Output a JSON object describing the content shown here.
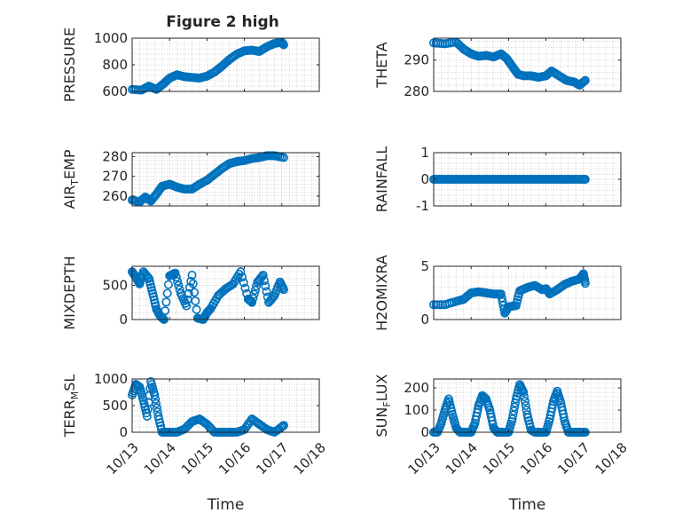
{
  "figure": {
    "title": "Figure 2 high",
    "marker_color": "#0072bd"
  },
  "chart_data": [
    {
      "type": "scatter",
      "ylabel": "PRESSURE",
      "ylim": [
        600,
        1000
      ],
      "yticks": [
        "600",
        "800",
        "1000"
      ],
      "xlim": [
        0,
        5
      ],
      "xticks": [
        "10/13",
        "10/14",
        "10/15",
        "10/16",
        "10/17",
        "10/18"
      ],
      "show_xticklabels": false,
      "grid": "dotted",
      "x": [
        0,
        0.25,
        0.45,
        0.65,
        0.85,
        1.0,
        1.2,
        1.4,
        1.6,
        1.8,
        2.0,
        2.2,
        2.4,
        2.6,
        2.8,
        3.0,
        3.2,
        3.4,
        3.6,
        3.8,
        4.0,
        4.05
      ],
      "y": [
        615,
        610,
        640,
        615,
        660,
        700,
        725,
        710,
        705,
        700,
        715,
        745,
        790,
        840,
        880,
        905,
        910,
        900,
        935,
        960,
        970,
        950
      ]
    },
    {
      "type": "scatter",
      "ylabel": "THETA",
      "ylim": [
        280,
        297
      ],
      "yticks": [
        "280",
        "290"
      ],
      "xlim": [
        0,
        5
      ],
      "xticks": [
        "10/13",
        "10/14",
        "10/15",
        "10/16",
        "10/17",
        "10/18"
      ],
      "show_xticklabels": false,
      "grid": "dotted",
      "x": [
        0,
        0.3,
        0.6,
        0.8,
        1.0,
        1.2,
        1.4,
        1.6,
        1.8,
        1.95,
        2.1,
        2.25,
        2.4,
        2.6,
        2.8,
        3.0,
        3.15,
        3.35,
        3.55,
        3.75,
        3.9,
        4.05
      ],
      "y": [
        295.5,
        295.2,
        295.8,
        293.5,
        292.0,
        291.2,
        291.5,
        291.0,
        292.0,
        290.5,
        288.0,
        285.5,
        285.0,
        285.0,
        284.5,
        285.0,
        286.5,
        285.0,
        283.5,
        283.0,
        282.0,
        283.5
      ]
    },
    {
      "type": "scatter",
      "ylabel": "AIR",
      "ylabel_sub": "T",
      "ylabel_post": "EMP",
      "ylim": [
        255,
        282
      ],
      "yticks": [
        "260",
        "270",
        "280"
      ],
      "xlim": [
        0,
        5
      ],
      "xticks": [
        "10/13",
        "10/14",
        "10/15",
        "10/16",
        "10/17",
        "10/18"
      ],
      "show_xticklabels": false,
      "grid": "dotted",
      "x": [
        0,
        0.2,
        0.35,
        0.5,
        0.65,
        0.8,
        1.0,
        1.2,
        1.4,
        1.6,
        1.8,
        2.0,
        2.2,
        2.4,
        2.6,
        2.8,
        3.0,
        3.2,
        3.4,
        3.6,
        3.8,
        4.05
      ],
      "y": [
        258,
        257,
        259.5,
        257.5,
        261,
        265,
        266,
        264.5,
        263.5,
        263.5,
        266,
        268,
        271,
        274,
        276.5,
        277.5,
        278,
        279,
        279.5,
        280.5,
        280.5,
        279.5
      ]
    },
    {
      "type": "scatter",
      "ylabel": "RAINFALL",
      "ylim": [
        -1,
        1
      ],
      "yticks": [
        "-1",
        "0",
        "1"
      ],
      "xlim": [
        0,
        5
      ],
      "xticks": [
        "10/13",
        "10/14",
        "10/15",
        "10/16",
        "10/17",
        "10/18"
      ],
      "show_xticklabels": false,
      "grid": "dotted",
      "x": [
        0,
        0.2,
        0.4,
        0.6,
        0.8,
        1.0,
        1.2,
        1.4,
        1.6,
        1.8,
        2.0,
        2.2,
        2.4,
        2.6,
        2.8,
        3.0,
        3.2,
        3.4,
        3.6,
        3.8,
        4.0,
        4.05
      ],
      "y": [
        0,
        0,
        0,
        0,
        0,
        0,
        0,
        0,
        0,
        0,
        0,
        0,
        0,
        0,
        0,
        0,
        0,
        0,
        0,
        0,
        0,
        0
      ]
    },
    {
      "type": "scatter",
      "ylabel": "MIXDEPTH",
      "ylim": [
        0,
        780
      ],
      "yticks": [
        "0",
        "500"
      ],
      "xlim": [
        0,
        5
      ],
      "xticks": [
        "10/13",
        "10/14",
        "10/15",
        "10/16",
        "10/17",
        "10/18"
      ],
      "show_xticklabels": false,
      "grid": "dotted",
      "x": [
        0,
        0.1,
        0.2,
        0.3,
        0.45,
        0.55,
        0.65,
        0.75,
        0.85,
        1.0,
        1.15,
        1.3,
        1.45,
        1.6,
        1.75,
        1.9,
        2.0,
        2.1,
        2.3,
        2.5,
        2.7,
        2.9,
        3.1,
        3.2,
        3.35,
        3.5,
        3.65,
        3.8,
        3.95,
        4.05
      ],
      "y": [
        700,
        620,
        520,
        700,
        600,
        380,
        150,
        50,
        0,
        640,
        680,
        380,
        200,
        650,
        20,
        0,
        100,
        160,
        350,
        450,
        520,
        700,
        300,
        250,
        550,
        650,
        250,
        350,
        550,
        440
      ]
    },
    {
      "type": "scatter",
      "ylabel": "H2OMIXRA",
      "ylim": [
        0,
        5
      ],
      "yticks": [
        "0",
        "5"
      ],
      "xlim": [
        0,
        5
      ],
      "xticks": [
        "10/13",
        "10/14",
        "10/15",
        "10/16",
        "10/17",
        "10/18"
      ],
      "show_xticklabels": false,
      "grid": "dotted",
      "x": [
        0,
        0.3,
        0.6,
        0.8,
        1.0,
        1.2,
        1.4,
        1.6,
        1.8,
        1.9,
        2.0,
        2.2,
        2.3,
        2.5,
        2.7,
        2.9,
        3.0,
        3.1,
        3.3,
        3.5,
        3.7,
        3.9,
        4.0,
        4.05
      ],
      "y": [
        1.4,
        1.4,
        1.7,
        1.9,
        2.5,
        2.6,
        2.5,
        2.4,
        2.4,
        0.6,
        1.2,
        1.3,
        2.7,
        3.0,
        3.2,
        2.8,
        2.9,
        2.4,
        2.8,
        3.3,
        3.6,
        3.8,
        4.3,
        3.4
      ]
    },
    {
      "type": "scatter",
      "ylabel": "TERR",
      "ylabel_sub": "M",
      "ylabel_post": "SL",
      "ylim": [
        0,
        1000
      ],
      "yticks": [
        "0",
        "500",
        "1000"
      ],
      "xlim": [
        0,
        5
      ],
      "xticks": [
        "10/13",
        "10/14",
        "10/15",
        "10/16",
        "10/17",
        "10/18"
      ],
      "show_xticklabels": true,
      "grid": "dotted",
      "xlabel": "Time",
      "x": [
        0,
        0.1,
        0.2,
        0.3,
        0.4,
        0.5,
        0.6,
        0.7,
        0.8,
        0.9,
        1.0,
        1.2,
        1.4,
        1.6,
        1.8,
        2.0,
        2.2,
        2.4,
        2.6,
        2.8,
        3.0,
        3.2,
        3.4,
        3.6,
        3.8,
        4.0,
        4.05
      ],
      "y": [
        700,
        900,
        850,
        600,
        300,
        950,
        700,
        300,
        0,
        0,
        0,
        0,
        60,
        200,
        250,
        150,
        0,
        0,
        0,
        0,
        50,
        250,
        150,
        50,
        0,
        100,
        130
      ]
    },
    {
      "type": "scatter",
      "ylabel": "SUN",
      "ylabel_sub": "F",
      "ylabel_post": "LUX",
      "ylim": [
        0,
        240
      ],
      "yticks": [
        "0",
        "100",
        "200"
      ],
      "xlim": [
        0,
        5
      ],
      "xticks": [
        "10/13",
        "10/14",
        "10/15",
        "10/16",
        "10/17",
        "10/18"
      ],
      "show_xticklabels": true,
      "grid": "dotted",
      "xlabel": "Time",
      "x": [
        0,
        0.1,
        0.2,
        0.3,
        0.4,
        0.5,
        0.6,
        0.7,
        0.8,
        0.9,
        1.0,
        1.1,
        1.2,
        1.3,
        1.4,
        1.5,
        1.6,
        1.7,
        1.8,
        1.9,
        2.0,
        2.1,
        2.2,
        2.3,
        2.4,
        2.5,
        2.6,
        2.7,
        2.8,
        2.9,
        3.0,
        3.1,
        3.2,
        3.3,
        3.4,
        3.5,
        3.6,
        3.7,
        3.8,
        3.9,
        4.0,
        4.05
      ],
      "y": [
        0,
        0,
        40,
        100,
        150,
        80,
        20,
        0,
        0,
        0,
        0,
        40,
        120,
        165,
        150,
        100,
        20,
        0,
        0,
        0,
        0,
        60,
        150,
        215,
        180,
        80,
        10,
        0,
        0,
        0,
        0,
        60,
        140,
        185,
        130,
        50,
        0,
        0,
        0,
        0,
        0,
        0
      ]
    }
  ]
}
